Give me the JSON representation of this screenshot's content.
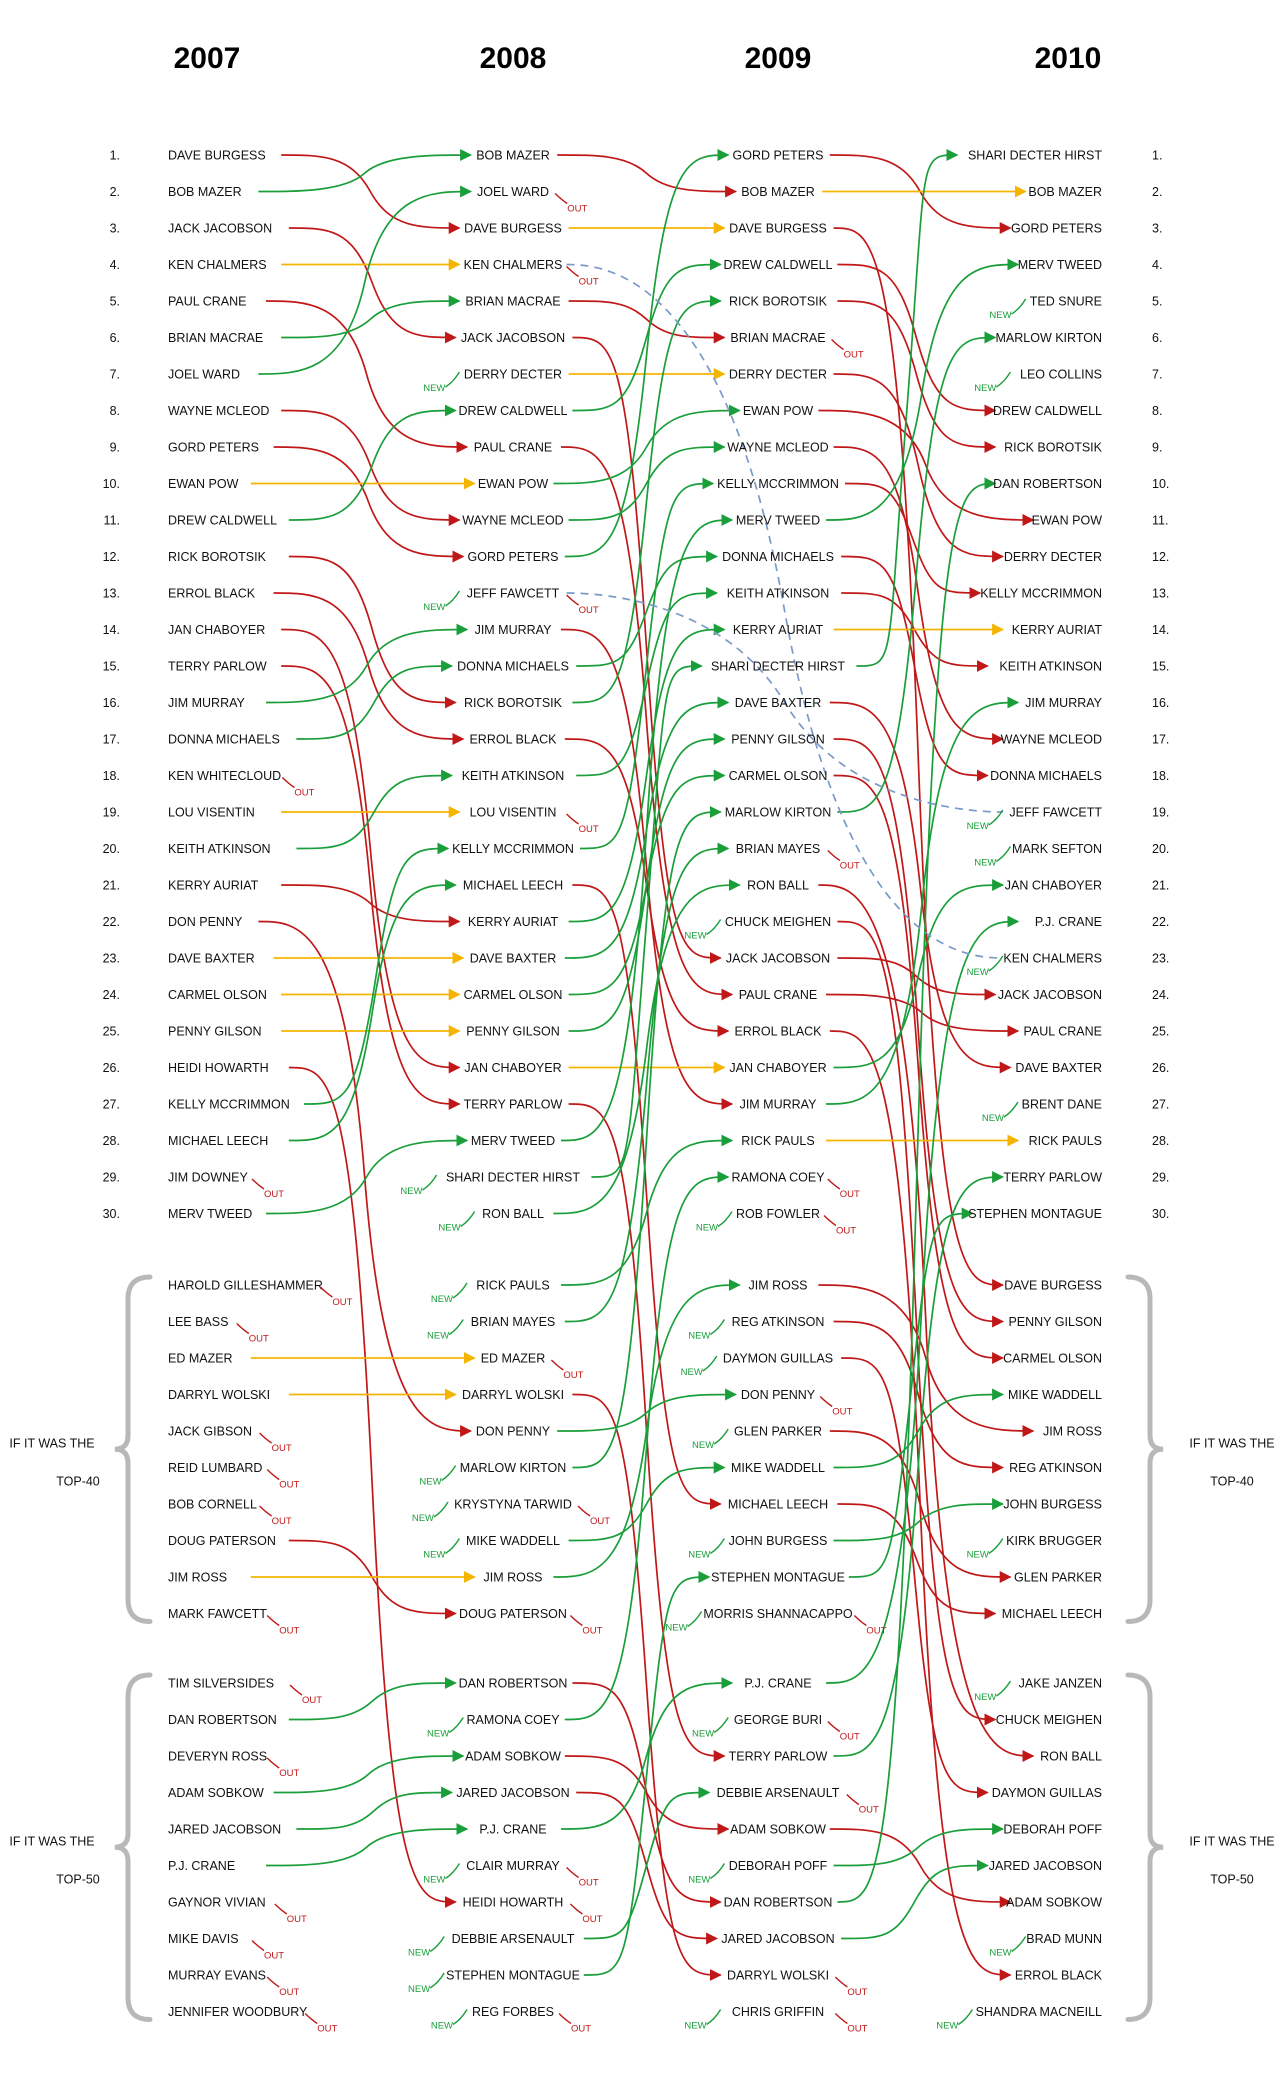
{
  "years": [
    "2007",
    "2008",
    "2009",
    "2010"
  ],
  "labels": {
    "new": "NEW",
    "out": "OUT"
  },
  "colors": {
    "up": "#1a9e3a",
    "down": "#c01818",
    "same": "#f5b400",
    "dashed": "#7a9ac8",
    "brace": "#b8b8b8",
    "text": "#111111"
  },
  "brace_labels": [
    {
      "group": "top40",
      "line1": "IF IT WAS THE",
      "line2": "TOP-40"
    },
    {
      "group": "top50",
      "line1": "IF IT WAS THE",
      "line2": "TOP-50"
    }
  ],
  "columns": [
    {
      "year": "2007",
      "entries": [
        {
          "pos": 1,
          "name": "DAVE BURGESS"
        },
        {
          "pos": 2,
          "name": "BOB MAZER"
        },
        {
          "pos": 3,
          "name": "JACK JACOBSON"
        },
        {
          "pos": 4,
          "name": "KEN CHALMERS"
        },
        {
          "pos": 5,
          "name": "PAUL CRANE"
        },
        {
          "pos": 6,
          "name": "BRIAN MACRAE"
        },
        {
          "pos": 7,
          "name": "JOEL WARD"
        },
        {
          "pos": 8,
          "name": "WAYNE MCLEOD"
        },
        {
          "pos": 9,
          "name": "GORD PETERS"
        },
        {
          "pos": 10,
          "name": "EWAN POW"
        },
        {
          "pos": 11,
          "name": "DREW CALDWELL"
        },
        {
          "pos": 12,
          "name": "RICK BOROTSIK"
        },
        {
          "pos": 13,
          "name": "ERROL BLACK"
        },
        {
          "pos": 14,
          "name": "JAN CHABOYER"
        },
        {
          "pos": 15,
          "name": "TERRY PARLOW"
        },
        {
          "pos": 16,
          "name": "JIM MURRAY"
        },
        {
          "pos": 17,
          "name": "DONNA MICHAELS"
        },
        {
          "pos": 18,
          "name": "KEN WHITECLOUD",
          "out": true
        },
        {
          "pos": 19,
          "name": "LOU VISENTIN"
        },
        {
          "pos": 20,
          "name": "KEITH ATKINSON"
        },
        {
          "pos": 21,
          "name": "KERRY AURIAT"
        },
        {
          "pos": 22,
          "name": "DON PENNY"
        },
        {
          "pos": 23,
          "name": "DAVE BAXTER"
        },
        {
          "pos": 24,
          "name": "CARMEL OLSON"
        },
        {
          "pos": 25,
          "name": "PENNY GILSON"
        },
        {
          "pos": 26,
          "name": "HEIDI HOWARTH"
        },
        {
          "pos": 27,
          "name": "KELLY MCCRIMMON"
        },
        {
          "pos": 28,
          "name": "MICHAEL LEECH"
        },
        {
          "pos": 29,
          "name": "JIM DOWNEY",
          "out": true
        },
        {
          "pos": 30,
          "name": "MERV TWEED"
        },
        {
          "pos": 31,
          "name": "HAROLD GILLESHAMMER",
          "out": true
        },
        {
          "pos": 32,
          "name": "LEE BASS",
          "out": true
        },
        {
          "pos": 33,
          "name": "ED MAZER"
        },
        {
          "pos": 34,
          "name": "DARRYL WOLSKI"
        },
        {
          "pos": 35,
          "name": "JACK GIBSON",
          "out": true
        },
        {
          "pos": 36,
          "name": "REID LUMBARD",
          "out": true
        },
        {
          "pos": 37,
          "name": "BOB CORNELL",
          "out": true
        },
        {
          "pos": 38,
          "name": "DOUG PATERSON"
        },
        {
          "pos": 39,
          "name": "JIM ROSS"
        },
        {
          "pos": 40,
          "name": "MARK FAWCETT",
          "out": true
        },
        {
          "pos": 41,
          "name": "TIM SILVERSIDES",
          "out": true
        },
        {
          "pos": 42,
          "name": "DAN ROBERTSON"
        },
        {
          "pos": 43,
          "name": "DEVERYN ROSS",
          "out": true
        },
        {
          "pos": 44,
          "name": "ADAM SOBKOW"
        },
        {
          "pos": 45,
          "name": "JARED JACOBSON"
        },
        {
          "pos": 46,
          "name": "P.J. CRANE"
        },
        {
          "pos": 47,
          "name": "GAYNOR VIVIAN",
          "out": true
        },
        {
          "pos": 48,
          "name": "MIKE DAVIS",
          "out": true
        },
        {
          "pos": 49,
          "name": "MURRAY EVANS",
          "out": true
        },
        {
          "pos": 50,
          "name": "JENNIFER WOODBURY",
          "out": true
        }
      ]
    },
    {
      "year": "2008",
      "entries": [
        {
          "pos": 1,
          "name": "BOB MAZER"
        },
        {
          "pos": 2,
          "name": "JOEL WARD",
          "out": true
        },
        {
          "pos": 3,
          "name": "DAVE BURGESS"
        },
        {
          "pos": 4,
          "name": "KEN CHALMERS",
          "out": true
        },
        {
          "pos": 5,
          "name": "BRIAN MACRAE"
        },
        {
          "pos": 6,
          "name": "JACK JACOBSON"
        },
        {
          "pos": 7,
          "name": "DERRY DECTER",
          "new": true
        },
        {
          "pos": 8,
          "name": "DREW CALDWELL"
        },
        {
          "pos": 9,
          "name": "PAUL CRANE"
        },
        {
          "pos": 10,
          "name": "EWAN POW"
        },
        {
          "pos": 11,
          "name": "WAYNE MCLEOD"
        },
        {
          "pos": 12,
          "name": "GORD PETERS"
        },
        {
          "pos": 13,
          "name": "JEFF FAWCETT",
          "new": true,
          "out": true
        },
        {
          "pos": 14,
          "name": "JIM MURRAY"
        },
        {
          "pos": 15,
          "name": "DONNA MICHAELS"
        },
        {
          "pos": 16,
          "name": "RICK BOROTSIK"
        },
        {
          "pos": 17,
          "name": "ERROL BLACK"
        },
        {
          "pos": 18,
          "name": "KEITH ATKINSON"
        },
        {
          "pos": 19,
          "name": "LOU VISENTIN",
          "out": true
        },
        {
          "pos": 20,
          "name": "KELLY MCCRIMMON"
        },
        {
          "pos": 21,
          "name": "MICHAEL LEECH"
        },
        {
          "pos": 22,
          "name": "KERRY AURIAT"
        },
        {
          "pos": 23,
          "name": "DAVE BAXTER"
        },
        {
          "pos": 24,
          "name": "CARMEL OLSON"
        },
        {
          "pos": 25,
          "name": "PENNY GILSON"
        },
        {
          "pos": 26,
          "name": "JAN CHABOYER"
        },
        {
          "pos": 27,
          "name": "TERRY PARLOW"
        },
        {
          "pos": 28,
          "name": "MERV TWEED"
        },
        {
          "pos": 29,
          "name": "SHARI DECTER HIRST",
          "new": true
        },
        {
          "pos": 30,
          "name": "RON BALL",
          "new": true
        },
        {
          "pos": 31,
          "name": "RICK PAULS",
          "new": true
        },
        {
          "pos": 32,
          "name": "BRIAN MAYES",
          "new": true
        },
        {
          "pos": 33,
          "name": "ED MAZER",
          "out": true
        },
        {
          "pos": 34,
          "name": "DARRYL WOLSKI"
        },
        {
          "pos": 35,
          "name": "DON PENNY"
        },
        {
          "pos": 36,
          "name": "MARLOW KIRTON",
          "new": true
        },
        {
          "pos": 37,
          "name": "KRYSTYNA TARWID",
          "new": true,
          "out": true
        },
        {
          "pos": 38,
          "name": "MIKE WADDELL",
          "new": true
        },
        {
          "pos": 39,
          "name": "JIM ROSS"
        },
        {
          "pos": 40,
          "name": "DOUG PATERSON",
          "out": true
        },
        {
          "pos": 41,
          "name": "DAN ROBERTSON"
        },
        {
          "pos": 42,
          "name": "RAMONA COEY",
          "new": true
        },
        {
          "pos": 43,
          "name": "ADAM SOBKOW"
        },
        {
          "pos": 44,
          "name": "JARED JACOBSON"
        },
        {
          "pos": 45,
          "name": "P.J. CRANE"
        },
        {
          "pos": 46,
          "name": "CLAIR MURRAY",
          "new": true,
          "out": true
        },
        {
          "pos": 47,
          "name": "HEIDI HOWARTH",
          "out": true
        },
        {
          "pos": 48,
          "name": "DEBBIE ARSENAULT",
          "new": true
        },
        {
          "pos": 49,
          "name": "STEPHEN MONTAGUE",
          "new": true
        },
        {
          "pos": 50,
          "name": "REG FORBES",
          "new": true,
          "out": true
        }
      ]
    },
    {
      "year": "2009",
      "entries": [
        {
          "pos": 1,
          "name": "GORD PETERS"
        },
        {
          "pos": 2,
          "name": "BOB MAZER"
        },
        {
          "pos": 3,
          "name": "DAVE BURGESS"
        },
        {
          "pos": 4,
          "name": "DREW CALDWELL"
        },
        {
          "pos": 5,
          "name": "RICK BOROTSIK"
        },
        {
          "pos": 6,
          "name": "BRIAN MACRAE",
          "out": true
        },
        {
          "pos": 7,
          "name": "DERRY DECTER"
        },
        {
          "pos": 8,
          "name": "EWAN POW"
        },
        {
          "pos": 9,
          "name": "WAYNE MCLEOD"
        },
        {
          "pos": 10,
          "name": "KELLY MCCRIMMON"
        },
        {
          "pos": 11,
          "name": "MERV TWEED"
        },
        {
          "pos": 12,
          "name": "DONNA MICHAELS"
        },
        {
          "pos": 13,
          "name": "KEITH ATKINSON"
        },
        {
          "pos": 14,
          "name": "KERRY AURIAT"
        },
        {
          "pos": 15,
          "name": "SHARI DECTER HIRST"
        },
        {
          "pos": 16,
          "name": "DAVE BAXTER"
        },
        {
          "pos": 17,
          "name": "PENNY GILSON"
        },
        {
          "pos": 18,
          "name": "CARMEL OLSON"
        },
        {
          "pos": 19,
          "name": "MARLOW KIRTON"
        },
        {
          "pos": 20,
          "name": "BRIAN MAYES",
          "out": true
        },
        {
          "pos": 21,
          "name": "RON BALL"
        },
        {
          "pos": 22,
          "name": "CHUCK MEIGHEN",
          "new": true
        },
        {
          "pos": 23,
          "name": "JACK JACOBSON"
        },
        {
          "pos": 24,
          "name": "PAUL CRANE"
        },
        {
          "pos": 25,
          "name": "ERROL BLACK"
        },
        {
          "pos": 26,
          "name": "JAN CHABOYER"
        },
        {
          "pos": 27,
          "name": "JIM MURRAY"
        },
        {
          "pos": 28,
          "name": "RICK PAULS"
        },
        {
          "pos": 29,
          "name": "RAMONA COEY",
          "out": true
        },
        {
          "pos": 30,
          "name": "ROB FOWLER",
          "new": true,
          "out": true
        },
        {
          "pos": 31,
          "name": "JIM ROSS"
        },
        {
          "pos": 32,
          "name": "REG ATKINSON",
          "new": true
        },
        {
          "pos": 33,
          "name": "DAYMON GUILLAS",
          "new": true
        },
        {
          "pos": 34,
          "name": "DON PENNY",
          "out": true
        },
        {
          "pos": 35,
          "name": "GLEN PARKER",
          "new": true
        },
        {
          "pos": 36,
          "name": "MIKE WADDELL"
        },
        {
          "pos": 37,
          "name": "MICHAEL LEECH"
        },
        {
          "pos": 38,
          "name": "JOHN BURGESS",
          "new": true
        },
        {
          "pos": 39,
          "name": "STEPHEN MONTAGUE"
        },
        {
          "pos": 40,
          "name": "MORRIS SHANNACAPPO",
          "new": true,
          "out": true
        },
        {
          "pos": 41,
          "name": "P.J. CRANE"
        },
        {
          "pos": 42,
          "name": "GEORGE BURI",
          "new": true,
          "out": true
        },
        {
          "pos": 43,
          "name": "TERRY PARLOW"
        },
        {
          "pos": 44,
          "name": "DEBBIE ARSENAULT",
          "out": true
        },
        {
          "pos": 45,
          "name": "ADAM SOBKOW"
        },
        {
          "pos": 46,
          "name": "DEBORAH POFF",
          "new": true
        },
        {
          "pos": 47,
          "name": "DAN ROBERTSON"
        },
        {
          "pos": 48,
          "name": "JARED JACOBSON"
        },
        {
          "pos": 49,
          "name": "DARRYL WOLSKI",
          "out": true
        },
        {
          "pos": 50,
          "name": "CHRIS GRIFFIN",
          "new": true,
          "out": true
        }
      ]
    },
    {
      "year": "2010",
      "entries": [
        {
          "pos": 1,
          "name": "SHARI DECTER HIRST"
        },
        {
          "pos": 2,
          "name": "BOB MAZER"
        },
        {
          "pos": 3,
          "name": "GORD PETERS"
        },
        {
          "pos": 4,
          "name": "MERV TWEED"
        },
        {
          "pos": 5,
          "name": "TED SNURE",
          "new": true
        },
        {
          "pos": 6,
          "name": "MARLOW KIRTON"
        },
        {
          "pos": 7,
          "name": "LEO COLLINS",
          "new": true
        },
        {
          "pos": 8,
          "name": "DREW CALDWELL"
        },
        {
          "pos": 9,
          "name": "RICK BOROTSIK"
        },
        {
          "pos": 10,
          "name": "DAN ROBERTSON"
        },
        {
          "pos": 11,
          "name": "EWAN POW"
        },
        {
          "pos": 12,
          "name": "DERRY DECTER"
        },
        {
          "pos": 13,
          "name": "KELLY MCCRIMMON"
        },
        {
          "pos": 14,
          "name": "KERRY AURIAT"
        },
        {
          "pos": 15,
          "name": "KEITH ATKINSON"
        },
        {
          "pos": 16,
          "name": "JIM MURRAY"
        },
        {
          "pos": 17,
          "name": "WAYNE MCLEOD"
        },
        {
          "pos": 18,
          "name": "DONNA MICHAELS"
        },
        {
          "pos": 19,
          "name": "JEFF FAWCETT",
          "new": true
        },
        {
          "pos": 20,
          "name": "MARK SEFTON",
          "new": true
        },
        {
          "pos": 21,
          "name": "JAN CHABOYER"
        },
        {
          "pos": 22,
          "name": "P.J. CRANE"
        },
        {
          "pos": 23,
          "name": "KEN CHALMERS",
          "new": true
        },
        {
          "pos": 24,
          "name": "JACK JACOBSON"
        },
        {
          "pos": 25,
          "name": "PAUL CRANE"
        },
        {
          "pos": 26,
          "name": "DAVE BAXTER"
        },
        {
          "pos": 27,
          "name": "BRENT DANE",
          "new": true
        },
        {
          "pos": 28,
          "name": "RICK PAULS"
        },
        {
          "pos": 29,
          "name": "TERRY PARLOW"
        },
        {
          "pos": 30,
          "name": "STEPHEN MONTAGUE"
        },
        {
          "pos": 31,
          "name": "DAVE BURGESS"
        },
        {
          "pos": 32,
          "name": "PENNY GILSON"
        },
        {
          "pos": 33,
          "name": "CARMEL OLSON"
        },
        {
          "pos": 34,
          "name": "MIKE WADDELL"
        },
        {
          "pos": 35,
          "name": "JIM ROSS"
        },
        {
          "pos": 36,
          "name": "REG ATKINSON"
        },
        {
          "pos": 37,
          "name": "JOHN BURGESS"
        },
        {
          "pos": 38,
          "name": "KIRK BRUGGER",
          "new": true
        },
        {
          "pos": 39,
          "name": "GLEN PARKER"
        },
        {
          "pos": 40,
          "name": "MICHAEL LEECH"
        },
        {
          "pos": 41,
          "name": "JAKE JANZEN",
          "new": true
        },
        {
          "pos": 42,
          "name": "CHUCK MEIGHEN"
        },
        {
          "pos": 43,
          "name": "RON BALL"
        },
        {
          "pos": 44,
          "name": "DAYMON GUILLAS"
        },
        {
          "pos": 45,
          "name": "DEBORAH POFF"
        },
        {
          "pos": 46,
          "name": "JARED JACOBSON"
        },
        {
          "pos": 47,
          "name": "ADAM SOBKOW"
        },
        {
          "pos": 48,
          "name": "BRAD MUNN",
          "new": true
        },
        {
          "pos": 49,
          "name": "ERROL BLACK"
        },
        {
          "pos": 50,
          "name": "SHANDRA MACNEILL",
          "new": true
        }
      ]
    }
  ],
  "dashed_links": [
    {
      "name": "KEN CHALMERS",
      "from_year": "2008",
      "to_year": "2010"
    },
    {
      "name": "JEFF FAWCETT",
      "from_year": "2008",
      "to_year": "2010"
    },
    {
      "name": "LOU VISENTIN",
      "from_year": "2008",
      "to_year": "2009"
    }
  ]
}
